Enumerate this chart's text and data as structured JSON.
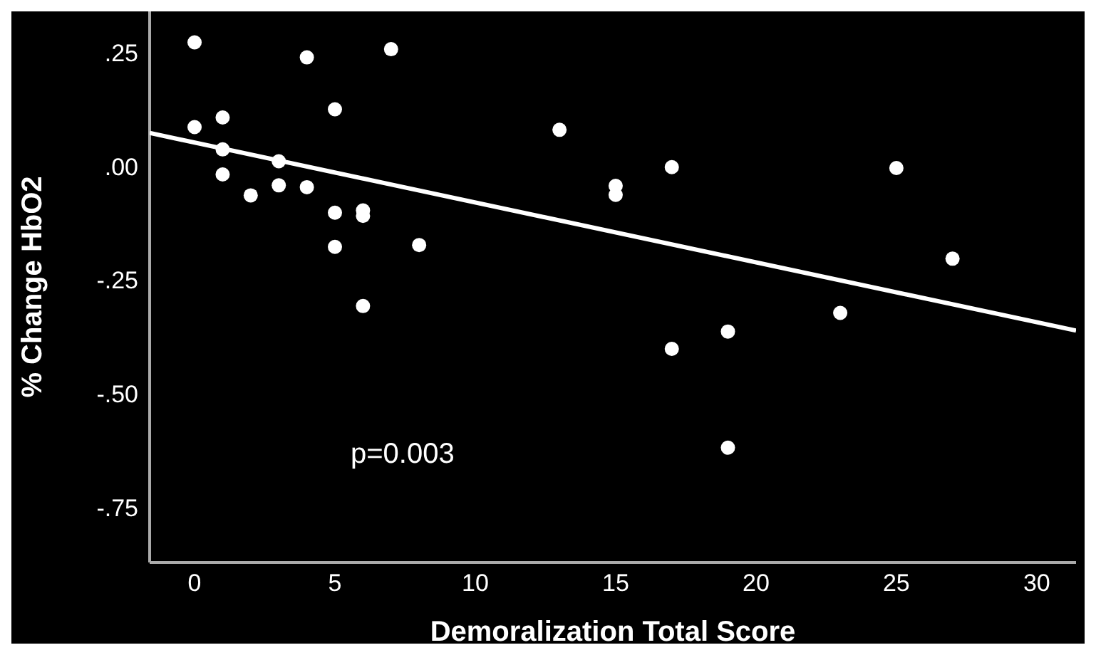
{
  "chart_data": {
    "type": "scatter",
    "xlabel": "Demoralization Total Score",
    "ylabel": "% Change HbO2",
    "annotations": [
      "p=0.003"
    ],
    "marker": "circle",
    "xlim": [
      -1.6,
      31.4
    ],
    "xticks": [
      0,
      5,
      10,
      15,
      20,
      25,
      30
    ],
    "ylim": [
      -0.87,
      0.34
    ],
    "yticks": [
      {
        "value": 0.25,
        "label": ".25"
      },
      {
        "value": 0,
        "label": ".00"
      },
      {
        "value": -0.25,
        "label": "-.25"
      },
      {
        "value": -0.5,
        "label": "-.50"
      },
      {
        "value": -0.75,
        "label": "-.75"
      }
    ],
    "series": [
      {
        "color": "#ffffff",
        "x": [
          0,
          0,
          1,
          1,
          1,
          2,
          3,
          3,
          4,
          4,
          5,
          5,
          5,
          6,
          6,
          6,
          7,
          8,
          13,
          15,
          15,
          17,
          17,
          19,
          19,
          23,
          25,
          27
        ],
        "values": [
          0.272,
          0.086,
          0.107,
          0.037,
          -0.018,
          -0.064,
          0.011,
          -0.042,
          0.239,
          -0.046,
          0.125,
          -0.102,
          -0.177,
          -0.097,
          -0.109,
          -0.307,
          0.257,
          -0.173,
          0.08,
          -0.043,
          -0.063,
          -0.002,
          -0.401,
          -0.363,
          -0.618,
          -0.322,
          -0.004,
          -0.203
        ]
      },
      {
        "type": "line",
        "marker": "none",
        "color": "#ffffff",
        "x": [
          -1.6,
          31.4
        ],
        "values": [
          0.073,
          -0.361
        ]
      }
    ]
  }
}
